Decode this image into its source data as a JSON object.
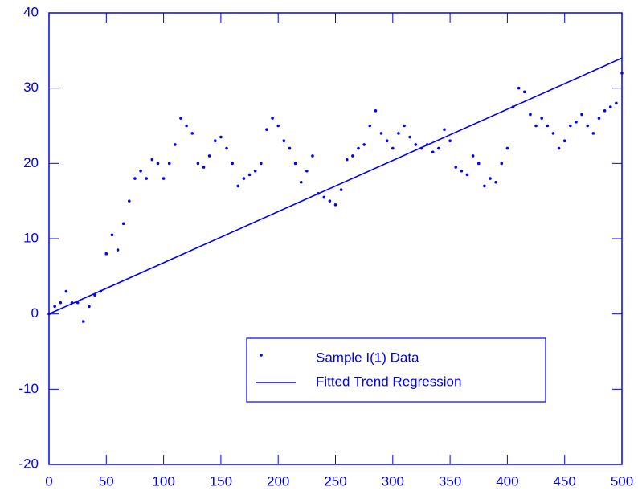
{
  "chart_data": {
    "type": "scatter",
    "xlim": [
      0,
      500
    ],
    "xticks": [
      0,
      50,
      100,
      150,
      200,
      250,
      300,
      350,
      400,
      450,
      500
    ],
    "ylim": [
      -20,
      40
    ],
    "yticks": [
      -20,
      -10,
      0,
      10,
      20,
      30,
      40
    ],
    "color": "#0000ff",
    "legend": "bottom-right",
    "series": [
      {
        "name": "Sample I(1) Data",
        "kind": "dots",
        "color": "#0000ff",
        "x": [
          0,
          5,
          10,
          15,
          20,
          25,
          30,
          35,
          40,
          45,
          50,
          55,
          60,
          65,
          70,
          75,
          80,
          85,
          90,
          95,
          100,
          105,
          110,
          115,
          120,
          125,
          130,
          135,
          140,
          145,
          150,
          155,
          160,
          165,
          170,
          175,
          180,
          185,
          190,
          195,
          200,
          205,
          210,
          215,
          220,
          225,
          230,
          235,
          240,
          245,
          250,
          255,
          260,
          265,
          270,
          275,
          280,
          285,
          290,
          295,
          300,
          305,
          310,
          315,
          320,
          325,
          330,
          335,
          340,
          345,
          350,
          355,
          360,
          365,
          370,
          375,
          380,
          385,
          390,
          395,
          400,
          405,
          410,
          415,
          420,
          425,
          430,
          435,
          440,
          445,
          450,
          455,
          460,
          465,
          470,
          475,
          480,
          485,
          490,
          495,
          500
        ],
        "values": [
          0,
          1,
          1.5,
          3,
          1.5,
          1.5,
          -1,
          1,
          2.5,
          3,
          8,
          10.5,
          8.5,
          12,
          15,
          18,
          19,
          18,
          20.5,
          20,
          18,
          20,
          22.5,
          26,
          25,
          24,
          20,
          19.5,
          21,
          23,
          23.5,
          22,
          20,
          17,
          18,
          18.5,
          19,
          20,
          24.5,
          26,
          25,
          23,
          22,
          20,
          17.5,
          19,
          21,
          16,
          15.5,
          15,
          14.5,
          16.5,
          20.5,
          21,
          22,
          22.5,
          25,
          27,
          24,
          23,
          22,
          24,
          25,
          23.5,
          22.5,
          22,
          22.5,
          21.5,
          22,
          24.5,
          23,
          19.5,
          19,
          18.5,
          21,
          20,
          17,
          18,
          17.5,
          20,
          22,
          27.5,
          30,
          29.5,
          26.5,
          25,
          26,
          25,
          24,
          22,
          23,
          25,
          25.5,
          26.5,
          25,
          24,
          26,
          27,
          27.5,
          28,
          32
        ]
      },
      {
        "name": "Fitted Trend Regression",
        "kind": "line",
        "color": "#0000ff",
        "x": [
          0,
          500
        ],
        "values": [
          0,
          34
        ]
      }
    ]
  }
}
